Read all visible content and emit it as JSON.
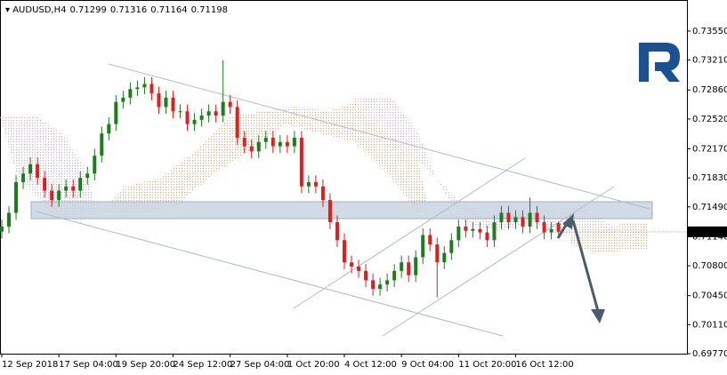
{
  "chart_data": {
    "type": "candlestick",
    "header": {
      "symbol": "AUDUSD,H4",
      "open": "0.71299",
      "high": "0.71316",
      "low": "0.71164",
      "close": "0.71198"
    },
    "price_tag": "0.71198",
    "up_color": "#1d7d1d",
    "down_color": "#e11e1e",
    "xlim": [
      -0.25,
      96
    ],
    "xticks": [
      {
        "value": 0,
        "label": "12 Sep 2018"
      },
      {
        "value": 8,
        "label": "17 Sep 04:00"
      },
      {
        "value": 16,
        "label": "19 Sep 20:00"
      },
      {
        "value": 24,
        "label": "24 Sep 12:00"
      },
      {
        "value": 32,
        "label": "27 Sep 04:00"
      },
      {
        "value": 40,
        "label": "1 Oct 20:00"
      },
      {
        "value": 48,
        "label": "4 Oct 12:00"
      },
      {
        "value": 56,
        "label": "9 Oct 04:00"
      },
      {
        "value": 64,
        "label": "11 Oct 20:00"
      },
      {
        "value": 72,
        "label": "16 Oct 12:00"
      }
    ],
    "ylim": [
      0.6977,
      0.73914
    ],
    "yticks": [
      {
        "value": 0.7355,
        "label": "0.73550"
      },
      {
        "value": 0.7321,
        "label": "0.73210"
      },
      {
        "value": 0.7286,
        "label": "0.72860"
      },
      {
        "value": 0.7252,
        "label": "0.72520"
      },
      {
        "value": 0.7217,
        "label": "0.72170"
      },
      {
        "value": 0.7183,
        "label": "0.71830"
      },
      {
        "value": 0.7149,
        "label": "0.71490"
      },
      {
        "value": 0.7114,
        "label": "0.71140"
      },
      {
        "value": 0.708,
        "label": "0.70800"
      },
      {
        "value": 0.7045,
        "label": "0.70450"
      },
      {
        "value": 0.7011,
        "label": "0.70110"
      },
      {
        "value": 0.6977,
        "label": "0.69770"
      }
    ],
    "open": [
      0.712,
      0.7126,
      0.7142,
      0.7178,
      0.7188,
      0.7199,
      0.7183,
      0.7168,
      0.7157,
      0.7168,
      0.7173,
      0.7168,
      0.7183,
      0.7188,
      0.7209,
      0.7235,
      0.7246,
      0.7272,
      0.7277,
      0.7287,
      0.7289,
      0.7293,
      0.7282,
      0.7266,
      0.7277,
      0.7261,
      0.7261,
      0.7246,
      0.7251,
      0.7256,
      0.7261,
      0.7256,
      0.7272,
      0.7266,
      0.723,
      0.722,
      0.7214,
      0.7225,
      0.723,
      0.722,
      0.7225,
      0.722,
      0.723,
      0.7173,
      0.7178,
      0.7173,
      0.7157,
      0.7131,
      0.711,
      0.7084,
      0.7079,
      0.7074,
      0.7063,
      0.7053,
      0.7058,
      0.7063,
      0.7074,
      0.7084,
      0.7069,
      0.709,
      0.7116,
      0.7105,
      0.7084,
      0.7095,
      0.711,
      0.7126,
      0.7121,
      0.7123,
      0.7119,
      0.711,
      0.7131,
      0.7142,
      0.7131,
      0.7137,
      0.7126,
      0.7142,
      0.7131,
      0.7119,
      0.71299
    ],
    "high": [
      0.7134,
      0.715,
      0.7186,
      0.7196,
      0.7207,
      0.7207,
      0.7191,
      0.7176,
      0.7176,
      0.7181,
      0.7181,
      0.7191,
      0.7196,
      0.7217,
      0.7243,
      0.7254,
      0.728,
      0.7285,
      0.7295,
      0.7297,
      0.7301,
      0.7301,
      0.729,
      0.7285,
      0.7285,
      0.7269,
      0.7269,
      0.7259,
      0.7264,
      0.7269,
      0.7269,
      0.7321,
      0.728,
      0.7274,
      0.7238,
      0.7228,
      0.7233,
      0.7238,
      0.7238,
      0.7233,
      0.7233,
      0.7238,
      0.7238,
      0.7186,
      0.7186,
      0.7181,
      0.7165,
      0.7139,
      0.7118,
      0.7092,
      0.7087,
      0.7082,
      0.7071,
      0.7066,
      0.7071,
      0.7082,
      0.7092,
      0.7092,
      0.7098,
      0.7124,
      0.7124,
      0.7113,
      0.7103,
      0.7118,
      0.7134,
      0.7134,
      0.7131,
      0.7131,
      0.7127,
      0.7139,
      0.715,
      0.715,
      0.7145,
      0.7145,
      0.716,
      0.715,
      0.7139,
      0.7131,
      0.71316
    ],
    "low": [
      0.7112,
      0.7118,
      0.7134,
      0.717,
      0.718,
      0.7175,
      0.716,
      0.7149,
      0.7149,
      0.716,
      0.716,
      0.716,
      0.7175,
      0.718,
      0.7201,
      0.7227,
      0.7238,
      0.7264,
      0.7269,
      0.7279,
      0.7281,
      0.7274,
      0.7258,
      0.7258,
      0.7253,
      0.7253,
      0.7238,
      0.7238,
      0.7243,
      0.7248,
      0.7248,
      0.7248,
      0.7258,
      0.7222,
      0.7212,
      0.7206,
      0.7206,
      0.7217,
      0.7212,
      0.7212,
      0.7212,
      0.7212,
      0.7165,
      0.7165,
      0.7165,
      0.7149,
      0.7123,
      0.7102,
      0.7076,
      0.7071,
      0.7066,
      0.7055,
      0.7045,
      0.7045,
      0.705,
      0.7055,
      0.7066,
      0.7061,
      0.7061,
      0.7082,
      0.7097,
      0.7043,
      0.7076,
      0.7087,
      0.7102,
      0.7113,
      0.7113,
      0.7111,
      0.7102,
      0.7102,
      0.7123,
      0.7123,
      0.7123,
      0.7118,
      0.7118,
      0.7123,
      0.7111,
      0.7111,
      0.71164
    ],
    "close": [
      0.7126,
      0.7142,
      0.7178,
      0.7188,
      0.7199,
      0.7183,
      0.7168,
      0.7157,
      0.7168,
      0.7173,
      0.7168,
      0.7183,
      0.7188,
      0.7209,
      0.7235,
      0.7246,
      0.7272,
      0.7277,
      0.7287,
      0.7289,
      0.7293,
      0.7282,
      0.7266,
      0.7277,
      0.7261,
      0.7261,
      0.7246,
      0.7251,
      0.7256,
      0.7261,
      0.7256,
      0.7272,
      0.7266,
      0.723,
      0.722,
      0.7214,
      0.7225,
      0.723,
      0.722,
      0.7225,
      0.722,
      0.723,
      0.7173,
      0.7178,
      0.7173,
      0.7157,
      0.7131,
      0.711,
      0.7084,
      0.7079,
      0.7074,
      0.7063,
      0.7053,
      0.7058,
      0.7063,
      0.7074,
      0.7084,
      0.7069,
      0.709,
      0.7116,
      0.7105,
      0.7084,
      0.7095,
      0.711,
      0.7126,
      0.7121,
      0.7123,
      0.7119,
      0.711,
      0.7131,
      0.7142,
      0.7131,
      0.7137,
      0.7126,
      0.7142,
      0.7131,
      0.7119,
      0.7123,
      0.71198
    ]
  }
}
